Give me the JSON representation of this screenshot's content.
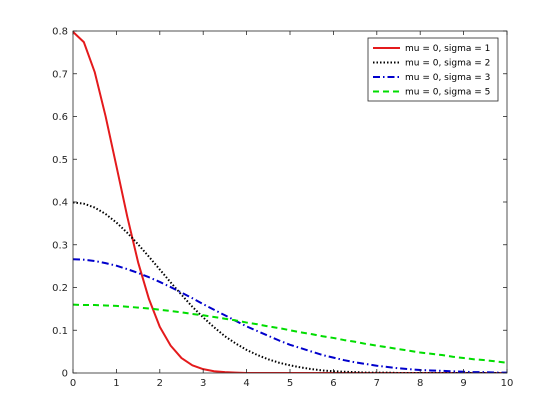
{
  "chart_data": {
    "type": "line",
    "title": "",
    "xlabel": "",
    "ylabel": "",
    "xlim": [
      0,
      10
    ],
    "ylim": [
      0,
      0.8
    ],
    "xticks": [
      0,
      1,
      2,
      3,
      4,
      5,
      6,
      7,
      8,
      9,
      10
    ],
    "yticks": [
      0,
      0.1,
      0.2,
      0.3,
      0.4,
      0.5,
      0.6,
      0.7,
      0.8
    ],
    "grid": false,
    "legend_position": "top-right",
    "x": [
      0,
      0.25,
      0.5,
      0.75,
      1,
      1.25,
      1.5,
      1.75,
      2,
      2.25,
      2.5,
      2.75,
      3,
      3.25,
      3.5,
      3.75,
      4,
      4.25,
      4.5,
      4.75,
      5,
      5.25,
      5.5,
      5.75,
      6,
      6.25,
      6.5,
      6.75,
      7,
      7.25,
      7.5,
      7.75,
      8,
      8.25,
      8.5,
      8.75,
      9,
      9.25,
      9.5,
      9.75,
      10
    ],
    "series": [
      {
        "name": "mu = 0, sigma = 1",
        "color": "#e41a1c",
        "dash": "solid",
        "values": [
          0.798,
          0.774,
          0.704,
          0.601,
          0.484,
          0.366,
          0.259,
          0.173,
          0.108,
          0.064,
          0.035,
          0.018,
          0.009,
          0.004,
          0.002,
          0.001,
          0.0,
          0.0,
          0.0,
          0.0,
          0.0,
          0.0,
          0.0,
          0.0,
          0.0,
          0.0,
          0.0,
          0.0,
          0.0,
          0.0,
          0.0,
          0.0,
          0.0,
          0.0,
          0.0,
          0.0,
          0.0,
          0.0,
          0.0,
          0.0,
          0.0
        ]
      },
      {
        "name": "mu = 0, sigma = 2",
        "color": "#000000",
        "dash": "dotted",
        "values": [
          0.399,
          0.396,
          0.387,
          0.372,
          0.352,
          0.328,
          0.301,
          0.272,
          0.242,
          0.212,
          0.183,
          0.155,
          0.13,
          0.107,
          0.086,
          0.069,
          0.054,
          0.042,
          0.032,
          0.024,
          0.018,
          0.013,
          0.009,
          0.006,
          0.004,
          0.003,
          0.002,
          0.001,
          0.001,
          0.001,
          0.0,
          0.0,
          0.0,
          0.0,
          0.0,
          0.0,
          0.0,
          0.0,
          0.0,
          0.0,
          0.0
        ]
      },
      {
        "name": "mu = 0, sigma = 3",
        "color": "#0000cc",
        "dash": "dashdot",
        "values": [
          0.266,
          0.265,
          0.262,
          0.257,
          0.251,
          0.243,
          0.234,
          0.224,
          0.213,
          0.201,
          0.188,
          0.175,
          0.161,
          0.148,
          0.135,
          0.122,
          0.109,
          0.098,
          0.087,
          0.076,
          0.066,
          0.058,
          0.05,
          0.042,
          0.036,
          0.03,
          0.025,
          0.021,
          0.017,
          0.014,
          0.011,
          0.009,
          0.007,
          0.006,
          0.005,
          0.004,
          0.003,
          0.002,
          0.002,
          0.001,
          0.001
        ]
      },
      {
        "name": "mu = 0, sigma = 5",
        "color": "#00dd00",
        "dash": "dashed",
        "values": [
          0.16,
          0.159,
          0.159,
          0.158,
          0.157,
          0.155,
          0.153,
          0.151,
          0.148,
          0.145,
          0.142,
          0.138,
          0.135,
          0.131,
          0.127,
          0.123,
          0.118,
          0.114,
          0.109,
          0.105,
          0.1,
          0.095,
          0.091,
          0.086,
          0.082,
          0.077,
          0.073,
          0.068,
          0.064,
          0.06,
          0.056,
          0.052,
          0.048,
          0.045,
          0.042,
          0.038,
          0.035,
          0.032,
          0.03,
          0.027,
          0.024
        ]
      }
    ]
  }
}
